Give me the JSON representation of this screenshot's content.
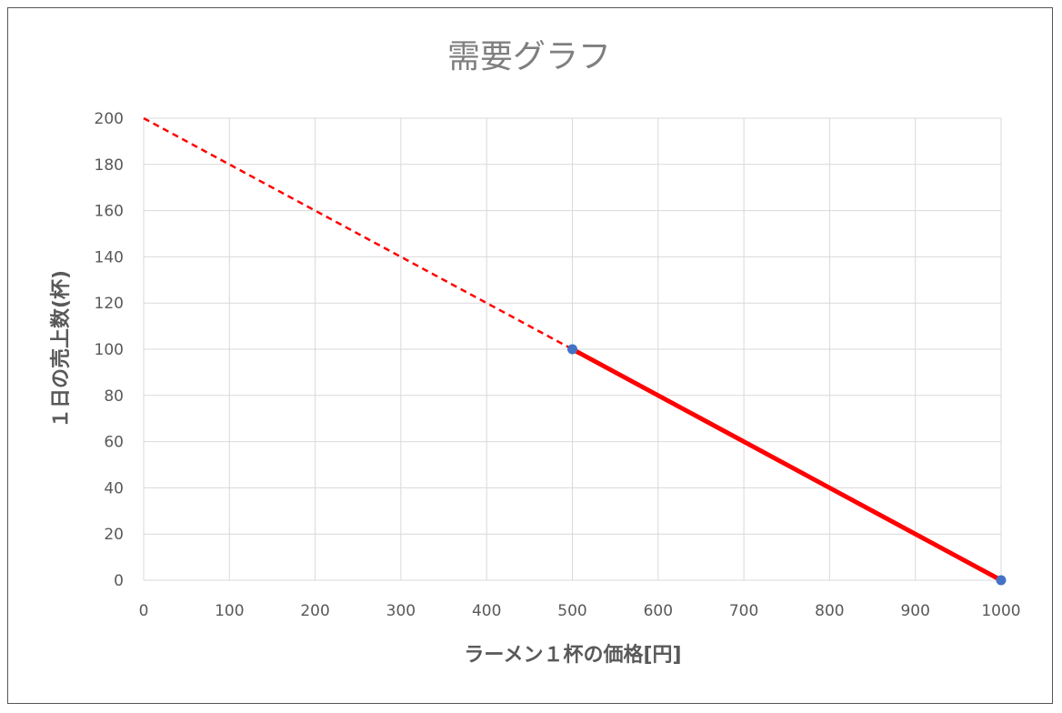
{
  "chart_data": {
    "type": "scatter",
    "title": "需要グラフ",
    "xlabel": "ラーメン１杯の価格[円]",
    "ylabel": "１日の売上数(杯)",
    "xlim": [
      0,
      1000
    ],
    "ylim": [
      0,
      200
    ],
    "xticks": [
      "0",
      "100",
      "200",
      "300",
      "400",
      "500",
      "600",
      "700",
      "800",
      "900",
      "1000"
    ],
    "yticks": [
      "0",
      "20",
      "40",
      "60",
      "80",
      "100",
      "120",
      "140",
      "160",
      "180",
      "200"
    ],
    "grid": true,
    "points": [
      {
        "x": 500,
        "y": 100
      },
      {
        "x": 1000,
        "y": 0
      }
    ],
    "lines": [
      {
        "style": "dashed",
        "color": "#ff0000",
        "from": [
          0,
          200
        ],
        "to": [
          500,
          100
        ]
      },
      {
        "style": "solid",
        "color": "#ff0000",
        "from": [
          500,
          100
        ],
        "to": [
          1000,
          0
        ]
      }
    ],
    "point_color": "#4472c4"
  }
}
